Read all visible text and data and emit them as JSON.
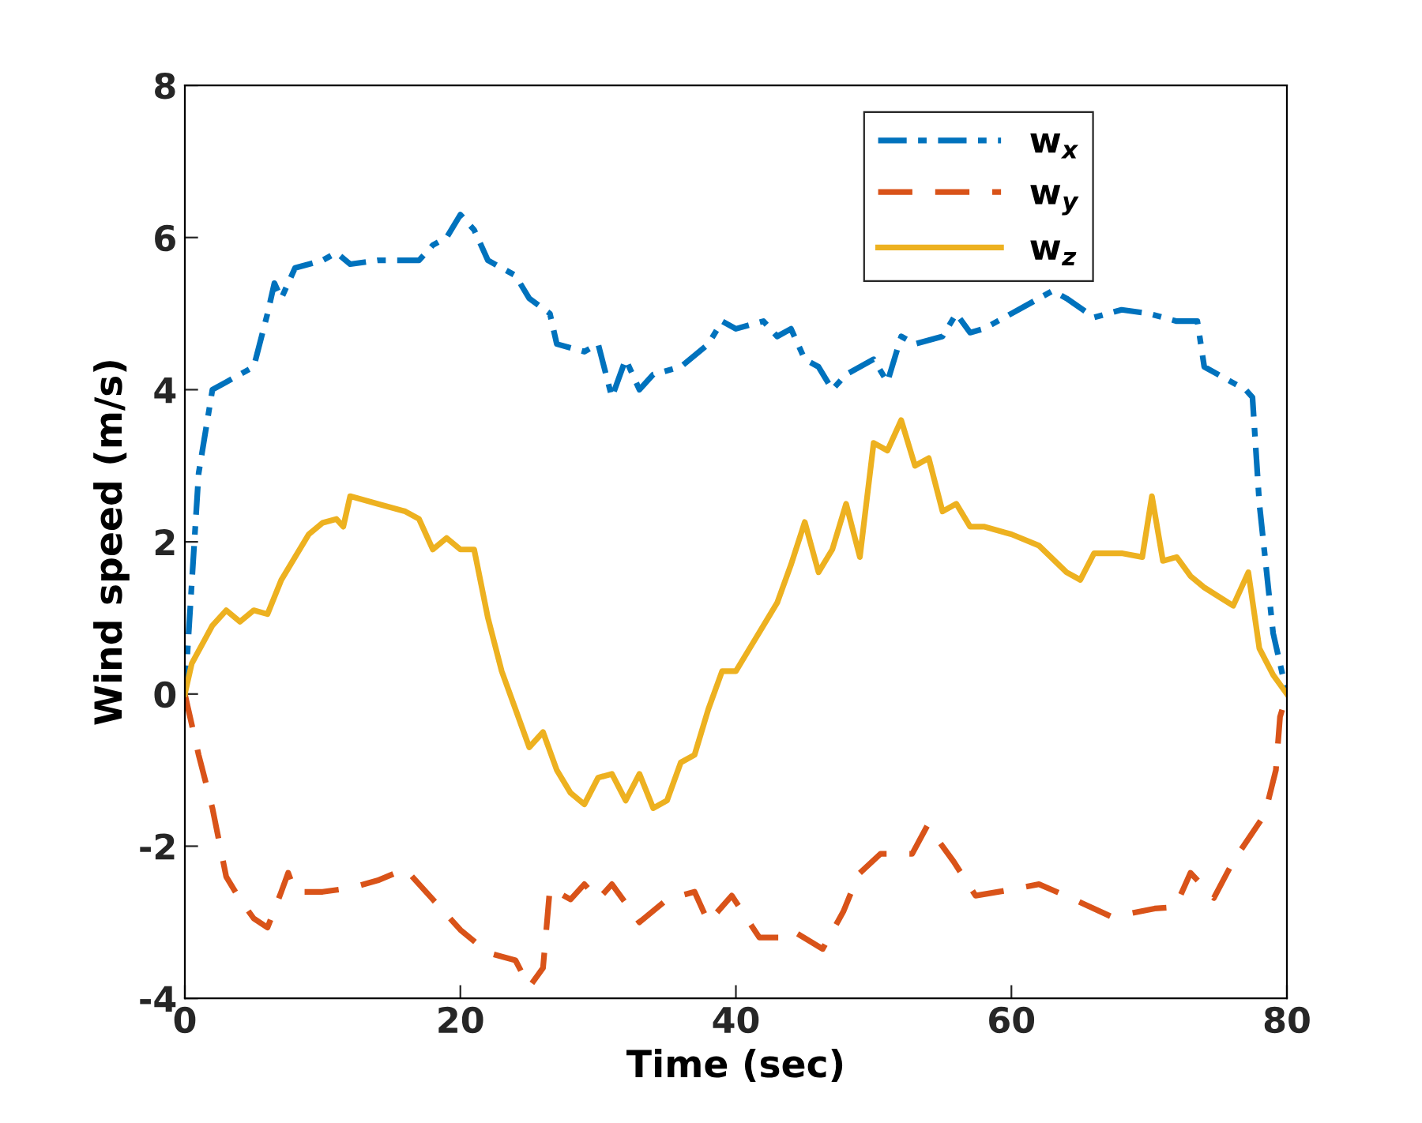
{
  "chart_data": {
    "type": "line",
    "xlabel": "Time (sec)",
    "ylabel": "Wind speed (m/s)",
    "xlim": [
      0,
      80
    ],
    "ylim": [
      -4,
      8
    ],
    "xticks": [
      0,
      20,
      40,
      60,
      80
    ],
    "yticks": [
      -4,
      -2,
      0,
      2,
      4,
      6,
      8
    ],
    "grid": false,
    "legend": "top right",
    "series": [
      {
        "name": "w$_{x}$",
        "color": "#0072bd",
        "line_style": "dashdot",
        "x": [
          0,
          1,
          2,
          3,
          4,
          5,
          6,
          6.5,
          7,
          8,
          10,
          11,
          12,
          14,
          16,
          17,
          18,
          19,
          20,
          21,
          22,
          24,
          25,
          26.5,
          27,
          28,
          29,
          30,
          31,
          32,
          33,
          34,
          36,
          38,
          39,
          40,
          42,
          43,
          44,
          45,
          46,
          47,
          48,
          50,
          51,
          52,
          53,
          55,
          56,
          57,
          58,
          60,
          62,
          63,
          64,
          66,
          68,
          70,
          72,
          73.5,
          74,
          75,
          76,
          77,
          77.5,
          78,
          79,
          80
        ],
        "values": [
          0,
          2.9,
          4.0,
          4.1,
          4.2,
          4.3,
          5.0,
          5.4,
          5.2,
          5.6,
          5.7,
          5.8,
          5.65,
          5.7,
          5.7,
          5.7,
          5.9,
          6.0,
          6.3,
          6.1,
          5.7,
          5.5,
          5.2,
          5.0,
          4.6,
          4.55,
          4.5,
          4.6,
          3.9,
          4.4,
          4.0,
          4.2,
          4.3,
          4.6,
          4.9,
          4.8,
          4.9,
          4.7,
          4.8,
          4.4,
          4.3,
          4.0,
          4.2,
          4.4,
          4.1,
          4.7,
          4.6,
          4.7,
          5.0,
          4.75,
          4.8,
          5.0,
          5.2,
          5.3,
          5.2,
          4.95,
          5.05,
          5.0,
          4.9,
          4.9,
          4.3,
          4.2,
          4.1,
          4.0,
          3.9,
          2.5,
          0.8,
          0
        ]
      },
      {
        "name": "w$_{y}$",
        "color": "#d95319",
        "line_style": "dashed",
        "x": [
          0,
          1,
          2,
          3,
          4,
          5,
          6,
          7,
          7.5,
          8,
          10,
          12,
          14,
          16,
          18,
          20,
          22,
          24,
          25,
          26,
          26.5,
          28,
          29,
          30,
          31,
          33,
          35,
          37,
          38,
          39.7,
          41.7,
          43.2,
          44,
          46.3,
          47.8,
          48.9,
          50.5,
          52.8,
          53.9,
          55.8,
          57.4,
          59.7,
          62,
          64.3,
          67.3,
          70.4,
          71.9,
          73,
          74.7,
          76.1,
          78.4,
          79.2,
          79.5,
          80
        ],
        "values": [
          0,
          -0.8,
          -1.5,
          -2.4,
          -2.7,
          -2.95,
          -3.07,
          -2.6,
          -2.35,
          -2.6,
          -2.6,
          -2.55,
          -2.45,
          -2.3,
          -2.7,
          -3.1,
          -3.4,
          -3.5,
          -3.85,
          -3.6,
          -2.55,
          -2.7,
          -2.5,
          -2.7,
          -2.5,
          -3.0,
          -2.7,
          -2.6,
          -3.0,
          -2.65,
          -3.2,
          -3.2,
          -3.1,
          -3.35,
          -2.86,
          -2.37,
          -2.1,
          -2.1,
          -1.73,
          -2.2,
          -2.65,
          -2.58,
          -2.5,
          -2.68,
          -2.93,
          -2.82,
          -2.8,
          -2.35,
          -2.68,
          -2.2,
          -1.58,
          -1.0,
          -0.3,
          0
        ]
      },
      {
        "name": "w$_{z}$",
        "color": "#edb120",
        "line_style": "solid",
        "x": [
          0,
          0.5,
          2,
          3,
          4,
          5,
          6,
          7,
          8,
          9,
          10,
          11,
          11.5,
          12,
          14,
          16,
          17,
          18,
          19,
          20,
          21,
          22,
          23,
          24,
          25,
          26,
          27,
          28,
          29,
          30,
          31,
          32,
          33,
          34,
          35,
          36,
          37,
          38,
          39,
          40,
          41,
          42,
          43,
          44,
          45,
          46,
          47,
          48,
          49,
          50,
          51,
          52,
          53,
          54,
          55,
          56,
          57,
          58,
          60,
          62,
          64,
          65,
          66,
          68,
          69.5,
          70.2,
          71,
          72,
          73,
          74,
          76.1,
          77.2,
          78,
          79,
          80
        ],
        "values": [
          0,
          0.4,
          0.9,
          1.1,
          0.95,
          1.1,
          1.05,
          1.5,
          1.8,
          2.1,
          2.25,
          2.3,
          2.2,
          2.6,
          2.5,
          2.4,
          2.3,
          1.9,
          2.05,
          1.9,
          1.9,
          1.0,
          0.3,
          -0.2,
          -0.7,
          -0.5,
          -1.0,
          -1.3,
          -1.45,
          -1.1,
          -1.05,
          -1.4,
          -1.05,
          -1.5,
          -1.4,
          -0.9,
          -0.8,
          -0.2,
          0.3,
          0.3,
          0.6,
          0.9,
          1.2,
          1.7,
          2.26,
          1.6,
          1.9,
          2.5,
          1.8,
          3.3,
          3.2,
          3.6,
          3.0,
          3.1,
          2.4,
          2.5,
          2.2,
          2.2,
          2.1,
          1.95,
          1.6,
          1.5,
          1.85,
          1.85,
          1.8,
          2.6,
          1.75,
          1.8,
          1.55,
          1.4,
          1.16,
          1.6,
          0.6,
          0.25,
          0
        ]
      }
    ]
  }
}
